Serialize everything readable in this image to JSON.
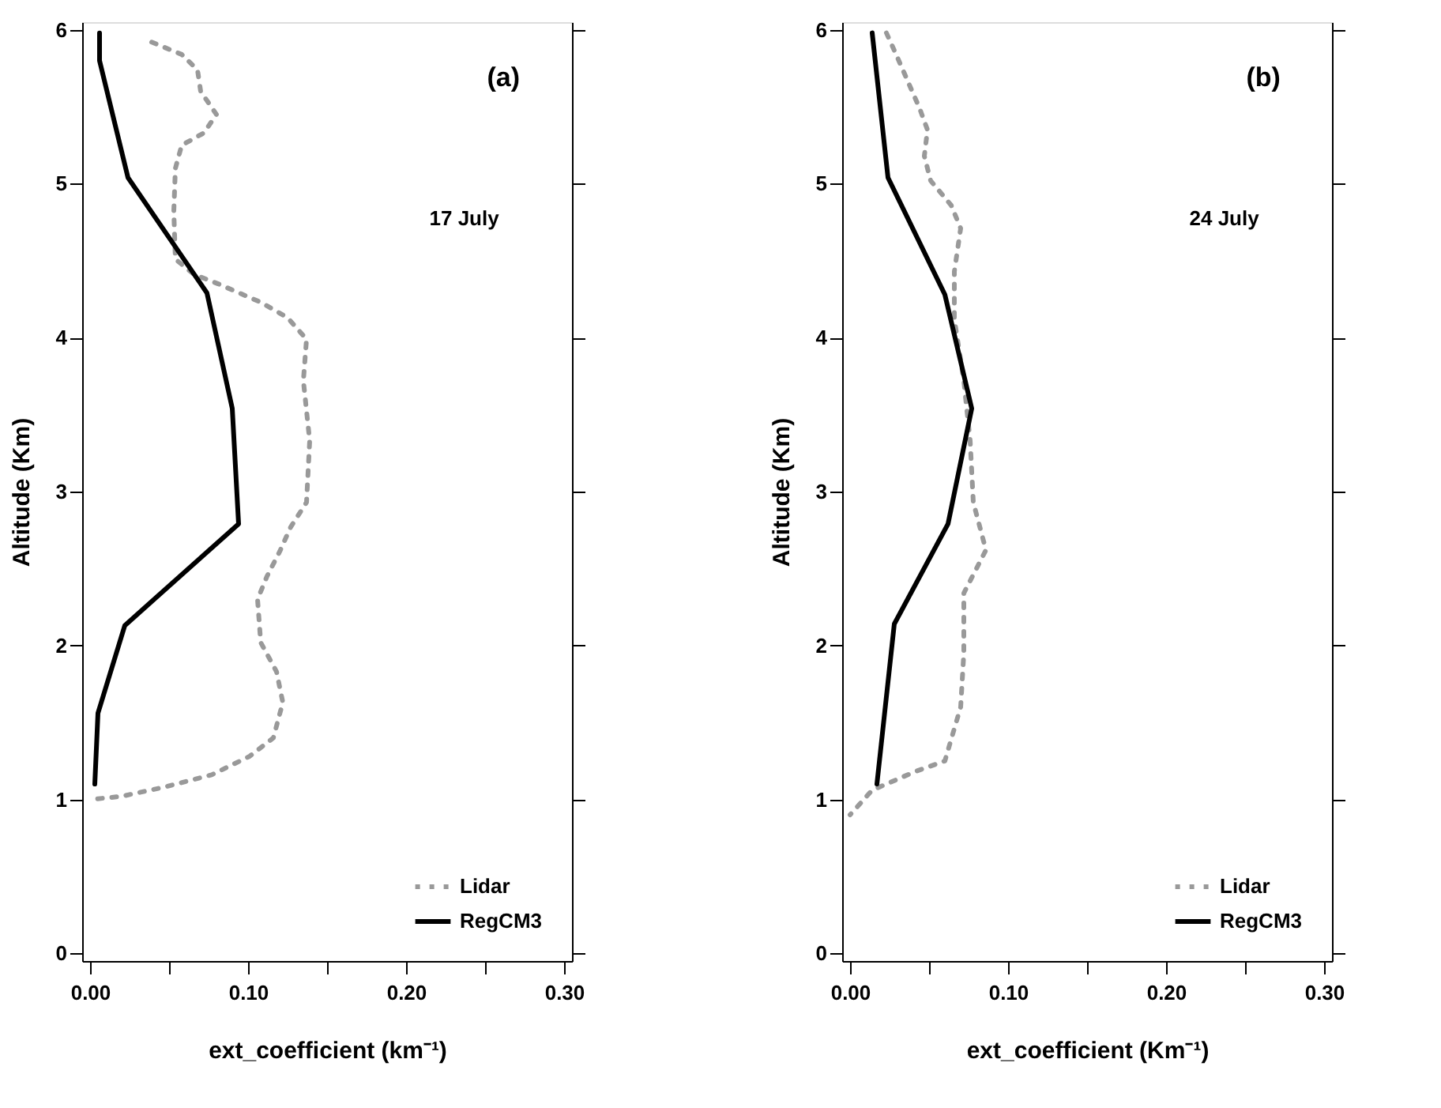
{
  "chart_data": [
    {
      "type": "line",
      "xlabel": "ext_coefficient (km⁻¹)",
      "ylabel": "Altitude (Km)",
      "annotations": [
        "(a)",
        "17 July"
      ],
      "xlim": [
        -0.005,
        0.305
      ],
      "ylim": [
        -0.05,
        6.05
      ],
      "xticks": [
        {
          "value": 0,
          "label": "0.00"
        },
        {
          "value": 0.05,
          "label": null
        },
        {
          "value": 0.1,
          "label": "0.10"
        },
        {
          "value": 0.15,
          "label": null
        },
        {
          "value": 0.2,
          "label": "0.20"
        },
        {
          "value": 0.25,
          "label": null
        },
        {
          "value": 0.3,
          "label": "0.30"
        }
      ],
      "yticks": [
        0,
        1,
        2,
        3,
        4,
        5,
        6
      ],
      "grid": false,
      "legend": "bottom right",
      "series": [
        {
          "name": "Lidar",
          "color": "#999999",
          "line_style": "dotted",
          "x": [
            0.039,
            0.058,
            0.068,
            0.07,
            0.08,
            0.072,
            0.058,
            0.054,
            0.053,
            0.054,
            0.066,
            0.081,
            0.108,
            0.125,
            0.137,
            0.135,
            0.139,
            0.137,
            0.127,
            0.12,
            0.112,
            0.106,
            0.108,
            0.118,
            0.122,
            0.116,
            0.101,
            0.077,
            0.047,
            0.02,
            0.001
          ],
          "values": [
            5.92,
            5.84,
            5.74,
            5.6,
            5.45,
            5.33,
            5.25,
            5.1,
            4.82,
            4.51,
            4.41,
            4.35,
            4.23,
            4.13,
            3.99,
            3.72,
            3.33,
            2.93,
            2.77,
            2.61,
            2.45,
            2.3,
            2.02,
            1.83,
            1.63,
            1.4,
            1.28,
            1.16,
            1.08,
            1.02,
            1.0
          ]
        },
        {
          "name": "RegCM3",
          "color": "#000000",
          "line_style": "solid",
          "x": [
            0.006,
            0.006,
            0.024,
            0.074,
            0.09,
            0.094,
            0.022,
            0.005,
            0.003
          ],
          "values": [
            5.98,
            5.8,
            5.04,
            4.29,
            3.54,
            2.79,
            2.13,
            1.56,
            1.1
          ]
        }
      ]
    },
    {
      "type": "line",
      "xlabel": "ext_coefficient (Km⁻¹)",
      "ylabel": "Altitude (Km)",
      "annotations": [
        "(b)",
        "24 July"
      ],
      "xlim": [
        -0.005,
        0.305
      ],
      "ylim": [
        -0.05,
        6.05
      ],
      "xticks": [
        {
          "value": 0,
          "label": "0.00"
        },
        {
          "value": 0.05,
          "label": null
        },
        {
          "value": 0.1,
          "label": "0.10"
        },
        {
          "value": 0.15,
          "label": null
        },
        {
          "value": 0.2,
          "label": "0.20"
        },
        {
          "value": 0.25,
          "label": null
        },
        {
          "value": 0.3,
          "label": "0.30"
        }
      ],
      "yticks": [
        0,
        1,
        2,
        3,
        4,
        5,
        6
      ],
      "grid": false,
      "legend": "bottom right",
      "series": [
        {
          "name": "Lidar",
          "color": "#999999",
          "line_style": "dotted",
          "x": [
            0.023,
            0.03,
            0.044,
            0.049,
            0.047,
            0.051,
            0.064,
            0.07,
            0.066,
            0.066,
            0.072,
            0.076,
            0.078,
            0.086,
            0.072,
            0.072,
            0.07,
            0.06,
            0.041,
            0.014,
            0.0
          ],
          "values": [
            5.98,
            5.82,
            5.49,
            5.35,
            5.18,
            5.02,
            4.86,
            4.71,
            4.43,
            4.12,
            3.72,
            3.33,
            2.93,
            2.62,
            2.34,
            1.95,
            1.6,
            1.25,
            1.18,
            1.06,
            0.9
          ]
        },
        {
          "name": "RegCM3",
          "color": "#000000",
          "line_style": "solid",
          "x": [
            0.014,
            0.024,
            0.06,
            0.077,
            0.062,
            0.028,
            0.017
          ],
          "values": [
            5.98,
            5.04,
            4.28,
            3.54,
            2.79,
            2.14,
            1.1
          ]
        }
      ]
    }
  ]
}
